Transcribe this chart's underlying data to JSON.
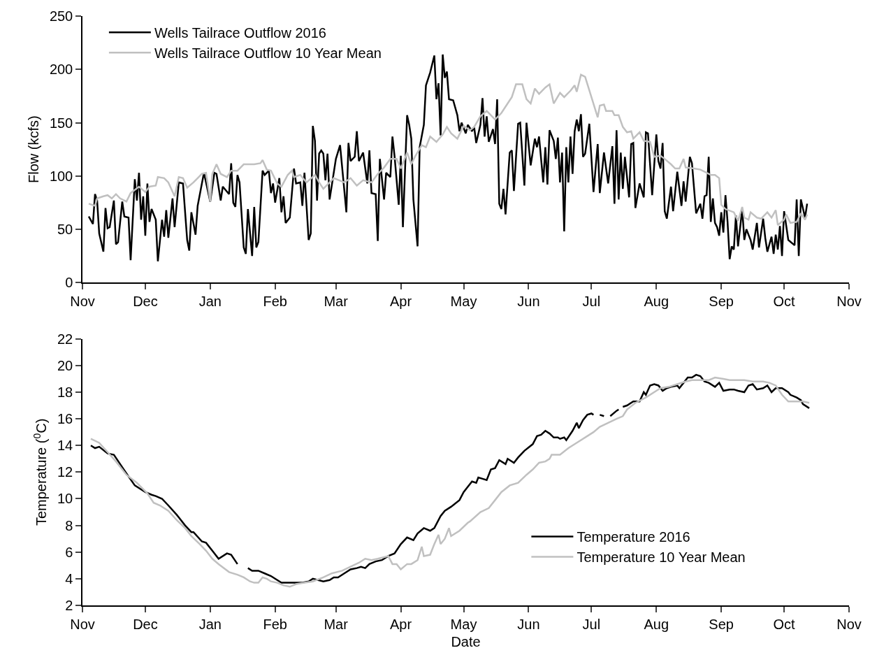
{
  "chart_data": [
    {
      "type": "line",
      "ylabel": "Flow (kcfs)",
      "ylim": [
        0,
        250
      ],
      "yticks": [
        0,
        50,
        100,
        150,
        200,
        250
      ],
      "xlim": [
        "2015-11-01",
        "2016-11-01"
      ],
      "xticks": [
        {
          "value": "2015-11-01",
          "label": "Nov"
        },
        {
          "value": "2015-12-01",
          "label": "Dec"
        },
        {
          "value": "2016-01-01",
          "label": "Jan"
        },
        {
          "value": "2016-02-01",
          "label": "Feb"
        },
        {
          "value": "2016-03-01",
          "label": "Mar"
        },
        {
          "value": "2016-04-01",
          "label": "Apr"
        },
        {
          "value": "2016-05-01",
          "label": "May"
        },
        {
          "value": "2016-06-01",
          "label": "Jun"
        },
        {
          "value": "2016-07-01",
          "label": "Jul"
        },
        {
          "value": "2016-08-01",
          "label": "Aug"
        },
        {
          "value": "2016-09-01",
          "label": "Sep"
        },
        {
          "value": "2016-10-01",
          "label": "Oct"
        },
        {
          "value": "2016-11-01",
          "label": "Nov"
        }
      ],
      "legend": "top left",
      "series": [
        {
          "name": "Wells Tailrace Outflow 2016",
          "color": "#000000",
          "x": [
            "2015-11-04",
            "2015-11-06",
            "2015-11-07",
            "2015-11-08",
            "2015-11-09",
            "2015-11-11",
            "2015-11-12",
            "2015-11-13",
            "2015-11-14",
            "2015-11-16",
            "2015-11-17",
            "2015-11-18",
            "2015-11-20",
            "2015-11-21",
            "2015-11-23",
            "2015-11-24",
            "2015-11-26",
            "2015-11-27",
            "2015-11-28",
            "2015-11-29",
            "2015-11-30",
            "2015-12-01",
            "2015-12-02",
            "2015-12-03",
            "2015-12-04",
            "2015-12-06",
            "2015-12-07",
            "2015-12-09",
            "2015-12-10",
            "2015-12-11",
            "2015-12-12",
            "2015-12-14",
            "2015-12-15",
            "2015-12-17",
            "2015-12-19",
            "2015-12-21",
            "2015-12-22",
            "2015-12-23",
            "2015-12-25",
            "2015-12-26",
            "2015-12-29",
            "2015-12-31",
            "2016-01-01",
            "2016-01-03",
            "2016-01-04",
            "2016-01-06",
            "2016-01-07",
            "2016-01-10",
            "2016-01-11",
            "2016-01-12",
            "2016-01-13",
            "2016-01-14",
            "2016-01-15",
            "2016-01-17",
            "2016-01-18",
            "2016-01-19",
            "2016-01-21",
            "2016-01-22",
            "2016-01-23",
            "2016-01-24",
            "2016-01-26",
            "2016-01-27",
            "2016-01-29",
            "2016-01-30",
            "2016-01-31",
            "2016-02-01",
            "2016-02-03",
            "2016-02-04",
            "2016-02-05",
            "2016-02-06",
            "2016-02-08",
            "2016-02-10",
            "2016-02-11",
            "2016-02-13",
            "2016-02-14",
            "2016-02-15",
            "2016-02-17",
            "2016-02-18",
            "2016-02-19",
            "2016-02-20",
            "2016-02-21",
            "2016-02-22",
            "2016-02-23",
            "2016-02-24",
            "2016-02-25",
            "2016-02-26",
            "2016-02-27",
            "2016-03-01",
            "2016-03-03",
            "2016-03-06",
            "2016-03-07",
            "2016-03-08",
            "2016-03-10",
            "2016-03-11",
            "2016-03-12",
            "2016-03-14",
            "2016-03-16",
            "2016-03-17",
            "2016-03-18",
            "2016-03-20",
            "2016-03-21",
            "2016-03-22",
            "2016-03-24",
            "2016-03-25",
            "2016-03-27",
            "2016-03-28",
            "2016-03-29",
            "2016-03-31",
            "2016-04-01",
            "2016-04-02",
            "2016-04-04",
            "2016-04-05",
            "2016-04-06",
            "2016-04-07",
            "2016-04-09",
            "2016-04-10",
            "2016-04-12",
            "2016-04-13",
            "2016-04-15",
            "2016-04-17",
            "2016-04-18",
            "2016-04-19",
            "2016-04-20",
            "2016-04-21",
            "2016-04-22",
            "2016-04-23",
            "2016-04-24",
            "2016-04-26",
            "2016-04-28",
            "2016-04-29",
            "2016-04-30",
            "2016-05-02",
            "2016-05-03",
            "2016-05-05",
            "2016-05-06",
            "2016-05-07",
            "2016-05-09",
            "2016-05-10",
            "2016-05-11",
            "2016-05-12",
            "2016-05-13",
            "2016-05-15",
            "2016-05-16",
            "2016-05-17",
            "2016-05-18",
            "2016-05-19",
            "2016-05-20",
            "2016-05-21",
            "2016-05-23",
            "2016-05-24",
            "2016-05-25",
            "2016-05-27",
            "2016-05-28",
            "2016-05-30",
            "2016-05-31",
            "2016-06-02",
            "2016-06-04",
            "2016-06-05",
            "2016-06-06",
            "2016-06-08",
            "2016-06-09",
            "2016-06-10",
            "2016-06-11",
            "2016-06-13",
            "2016-06-14",
            "2016-06-15",
            "2016-06-16",
            "2016-06-17",
            "2016-06-18",
            "2016-06-19",
            "2016-06-20",
            "2016-06-21",
            "2016-06-22",
            "2016-06-23",
            "2016-06-24",
            "2016-06-25",
            "2016-06-26",
            "2016-06-27",
            "2016-06-28",
            "2016-06-30",
            "2016-07-02",
            "2016-07-04",
            "2016-07-05",
            "2016-07-07",
            "2016-07-09",
            "2016-07-11",
            "2016-07-12",
            "2016-07-13",
            "2016-07-14",
            "2016-07-15",
            "2016-07-16",
            "2016-07-17",
            "2016-07-19",
            "2016-07-20",
            "2016-07-21",
            "2016-07-22",
            "2016-07-24",
            "2016-07-26",
            "2016-07-27",
            "2016-07-28",
            "2016-07-30",
            "2016-08-01",
            "2016-08-02",
            "2016-08-03",
            "2016-08-04",
            "2016-08-05",
            "2016-08-06",
            "2016-08-08",
            "2016-08-09",
            "2016-08-11",
            "2016-08-13",
            "2016-08-14",
            "2016-08-15",
            "2016-08-17",
            "2016-08-18",
            "2016-08-20",
            "2016-08-22",
            "2016-08-23",
            "2016-08-24",
            "2016-08-25",
            "2016-08-26",
            "2016-08-27",
            "2016-08-28",
            "2016-08-29",
            "2016-08-30",
            "2016-08-31",
            "2016-09-01",
            "2016-09-02",
            "2016-09-03",
            "2016-09-04",
            "2016-09-05",
            "2016-09-06",
            "2016-09-07",
            "2016-09-08",
            "2016-09-09",
            "2016-09-11",
            "2016-09-12",
            "2016-09-13",
            "2016-09-15",
            "2016-09-16",
            "2016-09-18",
            "2016-09-19",
            "2016-09-21",
            "2016-09-22",
            "2016-09-23",
            "2016-09-25",
            "2016-09-26",
            "2016-09-27",
            "2016-09-28",
            "2016-09-29",
            "2016-09-30",
            "2016-10-01",
            "2016-10-03",
            "2016-10-06",
            "2016-10-07",
            "2016-10-08",
            "2016-10-09",
            "2016-10-11",
            "2016-10-12"
          ],
          "values": [
            62,
            55,
            83,
            77,
            46,
            29,
            70,
            51,
            52,
            77,
            36,
            38,
            76,
            62,
            61,
            21,
            97,
            77,
            103,
            59,
            81,
            44,
            93,
            57,
            69,
            59,
            20,
            59,
            43,
            68,
            42,
            79,
            52,
            94,
            93,
            40,
            30,
            66,
            45,
            72,
            103,
            85,
            76,
            103,
            102,
            77,
            90,
            83,
            112,
            75,
            71,
            101,
            94,
            33,
            27,
            69,
            25,
            71,
            33,
            38,
            105,
            101,
            105,
            84,
            93,
            75,
            98,
            66,
            81,
            56,
            61,
            107,
            93,
            94,
            72,
            103,
            40,
            46,
            147,
            133,
            77,
            121,
            124,
            121,
            96,
            121,
            78,
            116,
            129,
            66,
            131,
            114,
            118,
            142,
            114,
            122,
            93,
            124,
            84,
            83,
            39,
            116,
            78,
            103,
            99,
            137,
            119,
            73,
            119,
            52,
            157,
            148,
            135,
            78,
            34,
            127,
            148,
            185,
            197,
            213,
            172,
            187,
            138,
            214,
            192,
            198,
            172,
            171,
            157,
            142,
            150,
            140,
            148,
            142,
            146,
            131,
            148,
            173,
            137,
            156,
            132,
            144,
            130,
            172,
            74,
            69,
            88,
            64,
            122,
            124,
            86,
            149,
            150,
            91,
            150,
            110,
            135,
            127,
            137,
            94,
            127,
            92,
            143,
            133,
            116,
            136,
            94,
            122,
            48,
            127,
            94,
            137,
            102,
            142,
            153,
            142,
            158,
            118,
            121,
            149,
            85,
            130,
            84,
            122,
            93,
            128,
            74,
            143,
            78,
            122,
            88,
            118,
            80,
            130,
            131,
            70,
            93,
            80,
            141,
            140,
            82,
            139,
            114,
            107,
            131,
            67,
            60,
            90,
            67,
            104,
            72,
            95,
            76,
            118,
            112,
            65,
            74,
            60,
            81,
            82,
            118,
            57,
            79,
            56,
            52,
            44,
            66,
            47,
            82,
            57,
            22,
            34,
            31,
            63,
            34,
            69,
            40,
            50,
            40,
            31,
            56,
            33,
            60,
            42,
            29,
            43,
            27,
            45,
            31,
            53,
            25,
            67,
            40,
            35,
            78,
            25,
            78,
            61,
            74
          ]
        },
        {
          "name": "Wells Tailrace Outflow 10 Year Mean",
          "color": "#c0c0c0",
          "x": [
            "2015-11-04",
            "2015-11-07",
            "2015-11-08",
            "2015-11-11",
            "2015-11-13",
            "2015-11-15",
            "2015-11-17",
            "2015-11-19",
            "2015-11-22",
            "2015-11-24",
            "2015-11-28",
            "2015-12-01",
            "2015-12-03",
            "2015-12-06",
            "2015-12-07",
            "2015-12-10",
            "2015-12-12",
            "2015-12-15",
            "2015-12-17",
            "2015-12-19",
            "2015-12-21",
            "2015-12-24",
            "2015-12-26",
            "2015-12-28",
            "2015-12-30",
            "2016-01-01",
            "2016-01-02",
            "2016-01-04",
            "2016-01-06",
            "2016-01-09",
            "2016-01-11",
            "2016-01-14",
            "2016-01-17",
            "2016-01-22",
            "2016-01-25",
            "2016-01-26",
            "2016-01-28",
            "2016-01-30",
            "2016-02-02",
            "2016-02-04",
            "2016-02-07",
            "2016-02-09",
            "2016-02-10",
            "2016-02-13",
            "2016-02-16",
            "2016-02-20",
            "2016-02-22",
            "2016-02-24",
            "2016-02-27",
            "2016-02-29",
            "2016-03-05",
            "2016-03-08",
            "2016-03-11",
            "2016-03-14",
            "2016-03-18",
            "2016-03-21",
            "2016-03-24",
            "2016-03-27",
            "2016-03-30",
            "2016-04-01",
            "2016-04-04",
            "2016-04-06",
            "2016-04-08",
            "2016-04-11",
            "2016-04-13",
            "2016-04-15",
            "2016-04-18",
            "2016-04-21",
            "2016-04-23",
            "2016-04-25",
            "2016-04-28",
            "2016-05-01",
            "2016-05-04",
            "2016-05-06",
            "2016-05-09",
            "2016-05-12",
            "2016-05-16",
            "2016-05-19",
            "2016-05-22",
            "2016-05-24",
            "2016-05-26",
            "2016-05-29",
            "2016-05-31",
            "2016-06-02",
            "2016-06-04",
            "2016-06-06",
            "2016-06-09",
            "2016-06-11",
            "2016-06-13",
            "2016-06-16",
            "2016-06-18",
            "2016-06-21",
            "2016-06-23",
            "2016-06-24",
            "2016-06-26",
            "2016-06-28",
            "2016-07-01",
            "2016-07-04",
            "2016-07-05",
            "2016-07-07",
            "2016-07-08",
            "2016-07-11",
            "2016-07-12",
            "2016-07-14",
            "2016-07-16",
            "2016-07-18",
            "2016-07-20",
            "2016-07-21",
            "2016-07-24",
            "2016-07-26",
            "2016-07-29",
            "2016-07-31",
            "2016-08-03",
            "2016-08-05",
            "2016-08-08",
            "2016-08-10",
            "2016-08-12",
            "2016-08-14",
            "2016-08-15",
            "2016-08-19",
            "2016-08-22",
            "2016-08-25",
            "2016-08-27",
            "2016-08-29",
            "2016-08-31",
            "2016-09-01",
            "2016-09-03",
            "2016-09-07",
            "2016-09-09",
            "2016-09-11",
            "2016-09-12",
            "2016-09-14",
            "2016-09-15",
            "2016-09-18",
            "2016-09-20",
            "2016-09-23",
            "2016-09-25",
            "2016-09-27",
            "2016-09-28",
            "2016-10-01",
            "2016-10-02",
            "2016-10-04",
            "2016-10-07",
            "2016-10-09",
            "2016-10-11",
            "2016-10-12"
          ],
          "values": [
            74,
            72,
            79,
            81,
            82,
            79,
            83,
            79,
            76,
            84,
            90,
            85,
            90,
            91,
            99,
            98,
            94,
            81,
            99,
            98,
            89,
            94,
            98,
            102,
            103,
            76,
            102,
            111,
            102,
            99,
            105,
            105,
            111,
            111,
            112,
            115,
            106,
            105,
            93,
            90,
            101,
            105,
            99,
            101,
            94,
            101,
            94,
            88,
            94,
            98,
            94,
            98,
            91,
            96,
            94,
            102,
            108,
            116,
            116,
            107,
            122,
            111,
            119,
            129,
            127,
            137,
            132,
            139,
            146,
            140,
            135,
            147,
            143,
            146,
            156,
            161,
            153,
            159,
            168,
            174,
            186,
            186,
            172,
            168,
            182,
            177,
            183,
            186,
            168,
            178,
            174,
            180,
            185,
            179,
            195,
            193,
            174,
            155,
            166,
            167,
            161,
            161,
            157,
            157,
            146,
            141,
            142,
            135,
            141,
            133,
            132,
            118,
            119,
            116,
            111,
            107,
            107,
            116,
            108,
            107,
            106,
            103,
            101,
            101,
            98,
            73,
            69,
            66,
            58,
            71,
            61,
            59,
            66,
            61,
            60,
            66,
            61,
            68,
            54,
            59,
            64,
            56,
            57,
            65,
            59,
            64
          ]
        }
      ]
    },
    {
      "type": "line",
      "xlabel": "Date",
      "ylabel": "Temperature ($^{0}$C)",
      "ylim": [
        2,
        22
      ],
      "yticks": [
        2,
        4,
        6,
        8,
        10,
        12,
        14,
        16,
        18,
        20,
        22
      ],
      "xlim": [
        "2015-11-01",
        "2016-11-01"
      ],
      "xticks": [
        {
          "value": "2015-11-01",
          "label": "Nov"
        },
        {
          "value": "2015-12-01",
          "label": "Dec"
        },
        {
          "value": "2016-01-01",
          "label": "Jan"
        },
        {
          "value": "2016-02-01",
          "label": "Feb"
        },
        {
          "value": "2016-03-01",
          "label": "Mar"
        },
        {
          "value": "2016-04-01",
          "label": "Apr"
        },
        {
          "value": "2016-05-01",
          "label": "May"
        },
        {
          "value": "2016-06-01",
          "label": "Jun"
        },
        {
          "value": "2016-07-01",
          "label": "Jul"
        },
        {
          "value": "2016-08-01",
          "label": "Aug"
        },
        {
          "value": "2016-09-01",
          "label": "Sep"
        },
        {
          "value": "2016-10-01",
          "label": "Oct"
        },
        {
          "value": "2016-11-01",
          "label": "Nov"
        }
      ],
      "legend": "bottom right",
      "series": [
        {
          "name": "Temperature 2016",
          "color": "#000000",
          "x": [
            "2015-11-05",
            "2015-11-07",
            "2015-11-09",
            "2015-11-13",
            "2015-11-16",
            "2015-11-19",
            "2015-11-22",
            "2015-11-26",
            "2015-12-01",
            "2015-12-04",
            "2015-12-06",
            "2015-12-09",
            "2015-12-12",
            "2015-12-16",
            "2015-12-20",
            "2015-12-23",
            "2015-12-24",
            "2015-12-28",
            "2015-12-30",
            "2016-01-02",
            "2016-01-05",
            "2016-01-09",
            "2016-01-11",
            "2016-01-14",
            "2016-01-16",
            "2016-01-19",
            "2016-01-21",
            "2016-01-24",
            "2016-01-27",
            "2016-01-30",
            "2016-02-02",
            "2016-02-04",
            "2016-02-06",
            "2016-02-10",
            "2016-02-14",
            "2016-02-17",
            "2016-02-19",
            "2016-02-24",
            "2016-02-27",
            "2016-02-29",
            "2016-03-02",
            "2016-03-05",
            "2016-03-08",
            "2016-03-11",
            "2016-03-13",
            "2016-03-15",
            "2016-03-17",
            "2016-03-20",
            "2016-03-23",
            "2016-03-26",
            "2016-03-29",
            "2016-04-01",
            "2016-04-04",
            "2016-04-07",
            "2016-04-09",
            "2016-04-12",
            "2016-04-15",
            "2016-04-17",
            "2016-04-20",
            "2016-04-22",
            "2016-04-25",
            "2016-04-29",
            "2016-05-01",
            "2016-05-03",
            "2016-05-05",
            "2016-05-07",
            "2016-05-08",
            "2016-05-10",
            "2016-05-12",
            "2016-05-14",
            "2016-05-16",
            "2016-05-18",
            "2016-05-21",
            "2016-05-22",
            "2016-05-25",
            "2016-05-27",
            "2016-05-30",
            "2016-06-03",
            "2016-06-05",
            "2016-06-07",
            "2016-06-09",
            "2016-06-11",
            "2016-06-13",
            "2016-06-15",
            "2016-06-16",
            "2016-06-18",
            "2016-06-19",
            "2016-06-22",
            "2016-06-24",
            "2016-06-25",
            "2016-06-27",
            "2016-06-29",
            "2016-07-01",
            "2016-07-02",
            "2016-07-04",
            "2016-07-05",
            "2016-07-07",
            "2016-07-08",
            "2016-07-10",
            "2016-07-13",
            "2016-07-14",
            "2016-07-15",
            "2016-07-16",
            "2016-07-18",
            "2016-07-21",
            "2016-07-24",
            "2016-07-26",
            "2016-07-27",
            "2016-07-29",
            "2016-07-31",
            "2016-08-02",
            "2016-08-04",
            "2016-08-06",
            "2016-08-08",
            "2016-08-11",
            "2016-08-12",
            "2016-08-14",
            "2016-08-16",
            "2016-08-18",
            "2016-08-20",
            "2016-08-22",
            "2016-08-24",
            "2016-08-26",
            "2016-08-29",
            "2016-08-31",
            "2016-09-02",
            "2016-09-05",
            "2016-09-07",
            "2016-09-09",
            "2016-09-12",
            "2016-09-14",
            "2016-09-16",
            "2016-09-18",
            "2016-09-21",
            "2016-09-23",
            "2016-09-25",
            "2016-09-27",
            "2016-09-30",
            "2016-10-03",
            "2016-10-04",
            "2016-10-07",
            "2016-10-09",
            "2016-10-10",
            "2016-10-13"
          ],
          "values": [
            14.0,
            13.8,
            13.9,
            13.4,
            13.3,
            12.6,
            11.9,
            11.0,
            10.5,
            10.3,
            10.2,
            10.0,
            9.5,
            8.8,
            8.0,
            7.5,
            7.5,
            6.8,
            6.7,
            6.1,
            5.5,
            5.9,
            5.8,
            5.1,
            null,
            4.8,
            4.6,
            4.6,
            4.4,
            4.2,
            3.9,
            3.7,
            3.7,
            3.7,
            3.7,
            3.8,
            4.0,
            3.8,
            3.9,
            4.1,
            4.1,
            4.4,
            4.7,
            4.8,
            4.9,
            4.8,
            5.1,
            5.3,
            5.4,
            5.7,
            5.9,
            6.6,
            7.1,
            6.9,
            7.4,
            7.8,
            7.6,
            7.8,
            8.7,
            9.1,
            9.4,
            9.9,
            10.5,
            10.9,
            11.3,
            11.2,
            11.6,
            11.5,
            11.4,
            12.2,
            12.3,
            12.9,
            12.6,
            13.0,
            12.7,
            13.1,
            13.6,
            14.1,
            14.7,
            14.8,
            15.1,
            14.9,
            14.6,
            14.6,
            14.5,
            14.6,
            14.4,
            15.1,
            15.7,
            15.3,
            15.9,
            16.3,
            16.4,
            16.3,
            null,
            16.3,
            16.2,
            null,
            16.2,
            16.6,
            16.7,
            null,
            16.9,
            17.0,
            17.3,
            17.3,
            18.0,
            17.8,
            18.5,
            18.6,
            18.5,
            18.1,
            18.3,
            18.4,
            18.5,
            18.3,
            18.7,
            19.1,
            19.1,
            19.3,
            19.2,
            18.8,
            18.7,
            18.4,
            18.7,
            18.1,
            18.2,
            18.2,
            18.1,
            18.0,
            18.5,
            18.6,
            18.2,
            18.3,
            18.5,
            18.0,
            18.3,
            18.3,
            18.0,
            17.8,
            17.6,
            17.4,
            17.1,
            16.8
          ]
        },
        {
          "name": "Temperature 10 Year Mean",
          "color": "#c0c0c0",
          "x": [
            "2015-11-05",
            "2015-11-09",
            "2015-11-13",
            "2015-11-17",
            "2015-11-22",
            "2015-11-27",
            "2015-12-02",
            "2015-12-05",
            "2015-12-08",
            "2015-12-12",
            "2015-12-16",
            "2015-12-20",
            "2015-12-23",
            "2015-12-27",
            "2015-12-30",
            "2016-01-02",
            "2016-01-05",
            "2016-01-10",
            "2016-01-14",
            "2016-01-17",
            "2016-01-20",
            "2016-01-22",
            "2016-01-24",
            "2016-01-26",
            "2016-01-28",
            "2016-01-30",
            "2016-02-02",
            "2016-02-05",
            "2016-02-08",
            "2016-02-11",
            "2016-02-15",
            "2016-02-19",
            "2016-02-24",
            "2016-02-28",
            "2016-03-04",
            "2016-03-08",
            "2016-03-12",
            "2016-03-15",
            "2016-03-18",
            "2016-03-21",
            "2016-03-26",
            "2016-03-28",
            "2016-03-30",
            "2016-04-01",
            "2016-04-04",
            "2016-04-06",
            "2016-04-09",
            "2016-04-11",
            "2016-04-12",
            "2016-04-15",
            "2016-04-17",
            "2016-04-19",
            "2016-04-20",
            "2016-04-22",
            "2016-04-24",
            "2016-04-25",
            "2016-04-29",
            "2016-05-03",
            "2016-05-04",
            "2016-05-09",
            "2016-05-13",
            "2016-05-16",
            "2016-05-19",
            "2016-05-23",
            "2016-05-27",
            "2016-05-31",
            "2016-06-03",
            "2016-06-06",
            "2016-06-09",
            "2016-06-11",
            "2016-06-12",
            "2016-06-16",
            "2016-06-20",
            "2016-06-25",
            "2016-06-29",
            "2016-07-02",
            "2016-07-05",
            "2016-07-09",
            "2016-07-13",
            "2016-07-16",
            "2016-07-18",
            "2016-07-22",
            "2016-07-27",
            "2016-08-01",
            "2016-08-03",
            "2016-08-07",
            "2016-08-11",
            "2016-08-15",
            "2016-08-18",
            "2016-08-23",
            "2016-08-26",
            "2016-08-29",
            "2016-09-02",
            "2016-09-05",
            "2016-09-09",
            "2016-09-12",
            "2016-09-16",
            "2016-09-21",
            "2016-09-24",
            "2016-09-27",
            "2016-09-30",
            "2016-10-03",
            "2016-10-06",
            "2016-10-10",
            "2016-10-13"
          ],
          "values": [
            14.5,
            14.2,
            13.5,
            12.8,
            11.8,
            11.2,
            10.4,
            9.7,
            9.5,
            9.1,
            8.4,
            7.8,
            7.2,
            6.6,
            6.1,
            5.5,
            5.1,
            4.5,
            4.3,
            4.1,
            3.8,
            3.7,
            3.7,
            4.1,
            4.0,
            3.8,
            3.7,
            3.5,
            3.4,
            3.6,
            3.7,
            3.8,
            4.1,
            4.4,
            4.6,
            4.9,
            5.2,
            5.5,
            5.4,
            5.5,
            5.7,
            5.1,
            5.1,
            4.7,
            5.1,
            5.1,
            5.4,
            6.4,
            5.7,
            5.8,
            6.6,
            7.3,
            6.6,
            7.0,
            7.8,
            7.2,
            7.6,
            8.2,
            8.3,
            9.0,
            9.3,
            9.9,
            10.5,
            11.0,
            11.2,
            11.8,
            12.2,
            12.7,
            12.8,
            13.0,
            13.3,
            13.3,
            13.8,
            14.3,
            14.7,
            15.0,
            15.4,
            15.7,
            16.0,
            16.2,
            16.7,
            17.2,
            17.6,
            18.1,
            18.3,
            18.4,
            18.6,
            18.8,
            18.9,
            18.9,
            18.9,
            19.1,
            19.0,
            18.9,
            18.9,
            18.9,
            18.8,
            18.8,
            18.7,
            18.5,
            17.8,
            17.3,
            17.3,
            17.3,
            17.2
          ]
        }
      ]
    }
  ]
}
